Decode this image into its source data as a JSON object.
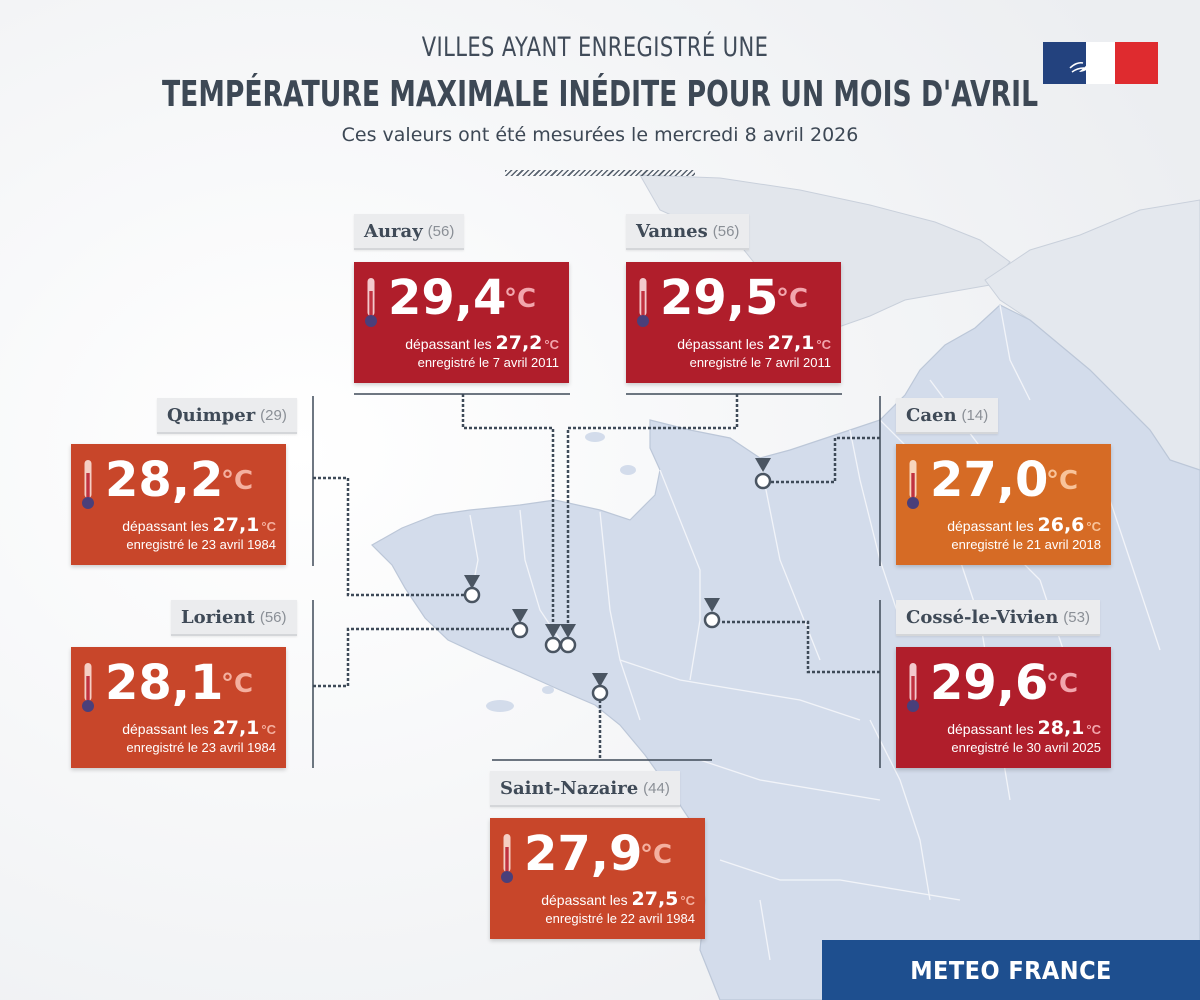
{
  "header": {
    "title_line1": "VILLES AYANT ENREGISTRÉ UNE",
    "title_line2": "TEMPÉRATURE MAXIMALE INÉDITE POUR UN MOIS D'AVRIL",
    "subtitle": "Ces valeurs ont été mesurées le mercredi 8 avril 2026"
  },
  "colors": {
    "land": "#d3dceb",
    "land_other": "#e4e8ee",
    "sea": "#f3f4f6",
    "record_dark": "#b01e2b",
    "record_mid": "#c8462a",
    "record_orange": "#d66b25",
    "connector": "#3e4a58"
  },
  "cities": {
    "auray": {
      "name": "Auray",
      "dept": "(56)",
      "value": "29,4",
      "unit": "°C",
      "prev_prefix": "dépassant les",
      "prev_value": "27,2",
      "prev_unit": "°C",
      "prev_date": "enregistré le 7 avril 2011"
    },
    "vannes": {
      "name": "Vannes",
      "dept": "(56)",
      "value": "29,5",
      "unit": "°C",
      "prev_prefix": "dépassant les",
      "prev_value": "27,1",
      "prev_unit": "°C",
      "prev_date": "enregistré le 7 avril 2011"
    },
    "quimper": {
      "name": "Quimper",
      "dept": "(29)",
      "value": "28,2",
      "unit": "°C",
      "prev_prefix": "dépassant les",
      "prev_value": "27,1",
      "prev_unit": "°C",
      "prev_date": "enregistré le 23 avril 1984"
    },
    "lorient": {
      "name": "Lorient",
      "dept": "(56)",
      "value": "28,1",
      "unit": "°C",
      "prev_prefix": "dépassant les",
      "prev_value": "27,1",
      "prev_unit": "°C",
      "prev_date": "enregistré le 23 avril 1984"
    },
    "caen": {
      "name": "Caen",
      "dept": "(14)",
      "value": "27,0",
      "unit": "°C",
      "prev_prefix": "dépassant les",
      "prev_value": "26,6",
      "prev_unit": "°C",
      "prev_date": "enregistré le 21 avril 2018"
    },
    "cosse": {
      "name": "Cossé-le-Vivien",
      "dept": "(53)",
      "value": "29,6",
      "unit": "°C",
      "prev_prefix": "dépassant les",
      "prev_value": "28,1",
      "prev_unit": "°C",
      "prev_date": "enregistré le 30 avril 2025"
    },
    "saint_nazaire": {
      "name": "Saint-Nazaire",
      "dept": "(44)",
      "value": "27,9",
      "unit": "°C",
      "prev_prefix": "dépassant les",
      "prev_value": "27,5",
      "prev_unit": "°C",
      "prev_date": "enregistré le 22 avril 1984"
    }
  },
  "logo": {
    "text": "METEO FRANCE"
  },
  "icons": [
    "thermometer-icon",
    "location-marker-icon",
    "marianne-flag-logo"
  ]
}
